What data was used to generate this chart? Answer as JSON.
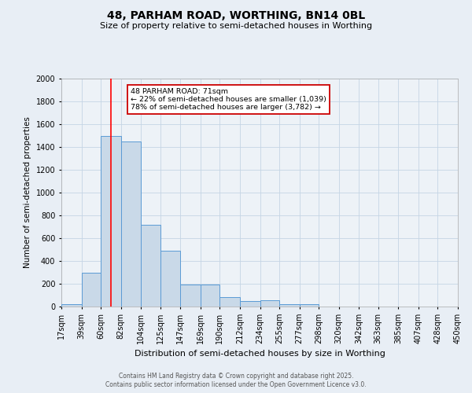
{
  "title": "48, PARHAM ROAD, WORTHING, BN14 0BL",
  "subtitle": "Size of property relative to semi-detached houses in Worthing",
  "xlabel": "Distribution of semi-detached houses by size in Worthing",
  "ylabel": "Number of semi-detached properties",
  "bins": [
    17,
    39,
    60,
    82,
    104,
    125,
    147,
    169,
    190,
    212,
    234,
    255,
    277,
    298,
    320,
    342,
    363,
    385,
    407,
    428,
    450
  ],
  "counts": [
    20,
    300,
    1500,
    1450,
    720,
    490,
    195,
    195,
    85,
    50,
    55,
    20,
    20,
    0,
    0,
    0,
    0,
    0,
    0,
    0
  ],
  "bar_color": "#c9d9e8",
  "bar_edge_color": "#5b9bd5",
  "red_line_x": 71,
  "annotation_line1": "48 PARHAM ROAD: 71sqm",
  "annotation_line2": "← 22% of semi-detached houses are smaller (1,039)",
  "annotation_line3": "78% of semi-detached houses are larger (3,782) →",
  "annotation_box_color": "#ffffff",
  "annotation_box_edge": "#cc0000",
  "ylim": [
    0,
    2000
  ],
  "yticks": [
    0,
    200,
    400,
    600,
    800,
    1000,
    1200,
    1400,
    1600,
    1800,
    2000
  ],
  "xtick_labels": [
    "17sqm",
    "39sqm",
    "60sqm",
    "82sqm",
    "104sqm",
    "125sqm",
    "147sqm",
    "169sqm",
    "190sqm",
    "212sqm",
    "234sqm",
    "255sqm",
    "277sqm",
    "298sqm",
    "320sqm",
    "342sqm",
    "363sqm",
    "385sqm",
    "407sqm",
    "428sqm",
    "450sqm"
  ],
  "footer1": "Contains HM Land Registry data © Crown copyright and database right 2025.",
  "footer2": "Contains public sector information licensed under the Open Government Licence v3.0.",
  "bg_color": "#e8eef5",
  "plot_bg_color": "#edf2f7",
  "grid_color": "#c5d5e5"
}
